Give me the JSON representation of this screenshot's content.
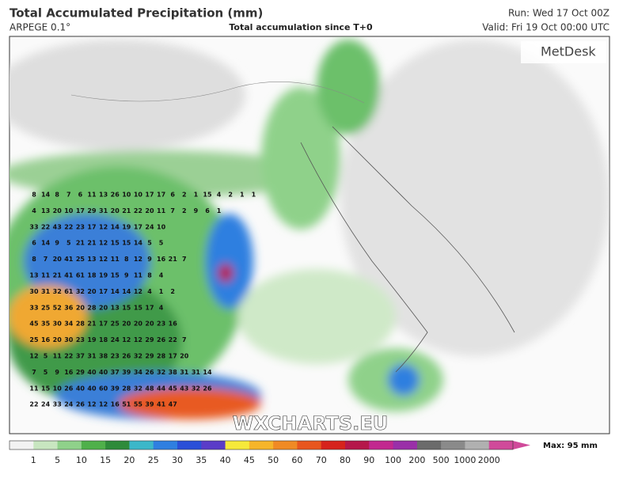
{
  "header": {
    "title": "Total Accumulated Precipitation (mm)",
    "model": "ARPEGE 0.1°",
    "subtitle": "Total accumulation since T+0",
    "run": "Run: Wed 17 Oct 00Z",
    "valid": "Valid: Fri 19 Oct 00:00 UTC"
  },
  "logo": "MetDesk",
  "watermark": "WXCHARTS.EU",
  "map_labels": [
    [
      8,
      14,
      8,
      7,
      6,
      11,
      13,
      26,
      10,
      10,
      17,
      17,
      6,
      2,
      1,
      15,
      4,
      2,
      1,
      1
    ],
    [
      4,
      13,
      20,
      10,
      17,
      29,
      31,
      20,
      21,
      22,
      20,
      11,
      7,
      2,
      9,
      6,
      1
    ],
    [
      33,
      22,
      43,
      22,
      23,
      17,
      12,
      14,
      19,
      17,
      24,
      10
    ],
    [
      6,
      14,
      9,
      5,
      21,
      21,
      12,
      15,
      15,
      14,
      5,
      5
    ],
    [
      8,
      7,
      20,
      41,
      25,
      13,
      12,
      11,
      8,
      12,
      9,
      16,
      21,
      7
    ],
    [
      13,
      11,
      21,
      41,
      61,
      18,
      19,
      15,
      9,
      11,
      8,
      4
    ],
    [
      30,
      31,
      32,
      61,
      32,
      20,
      17,
      14,
      14,
      12,
      4,
      1,
      2
    ],
    [
      33,
      25,
      52,
      36,
      20,
      28,
      20,
      13,
      15,
      15,
      17,
      4
    ],
    [
      45,
      35,
      30,
      34,
      28,
      21,
      17,
      25,
      20,
      20,
      20,
      23,
      16
    ],
    [
      25,
      16,
      20,
      30,
      23,
      19,
      18,
      24,
      12,
      12,
      29,
      26,
      22,
      7
    ],
    [
      12,
      5,
      11,
      22,
      37,
      31,
      38,
      23,
      26,
      32,
      29,
      28,
      17,
      20
    ],
    [
      7,
      5,
      9,
      16,
      29,
      40,
      40,
      37,
      39,
      34,
      26,
      32,
      38,
      31,
      31,
      14
    ],
    [
      11,
      15,
      10,
      26,
      40,
      40,
      60,
      39,
      28,
      32,
      48,
      44,
      45,
      43,
      32,
      26
    ],
    [
      22,
      24,
      33,
      24,
      26,
      12,
      12,
      16,
      51,
      55,
      39,
      41,
      47
    ]
  ],
  "legend": {
    "labels": [
      "1",
      "5",
      "10",
      "15",
      "20",
      "25",
      "30",
      "35",
      "40",
      "45",
      "50",
      "60",
      "70",
      "80",
      "90",
      "100",
      "200",
      "500",
      "1000",
      "2000"
    ],
    "colors": [
      "#f2f2f2",
      "#c8e6c0",
      "#8fd18a",
      "#4fb04a",
      "#2e8b3a",
      "#3cb7c9",
      "#2f7fe0",
      "#2a4fd8",
      "#5a3cc8",
      "#f6e93a",
      "#f6b52a",
      "#f08a24",
      "#e8561e",
      "#d6231c",
      "#b5174a",
      "#c2288f",
      "#9a2fa8",
      "#6b6b6b",
      "#8a8a8a",
      "#b0b0b0",
      "#d04a9a"
    ],
    "max": "Max: 95 mm"
  }
}
